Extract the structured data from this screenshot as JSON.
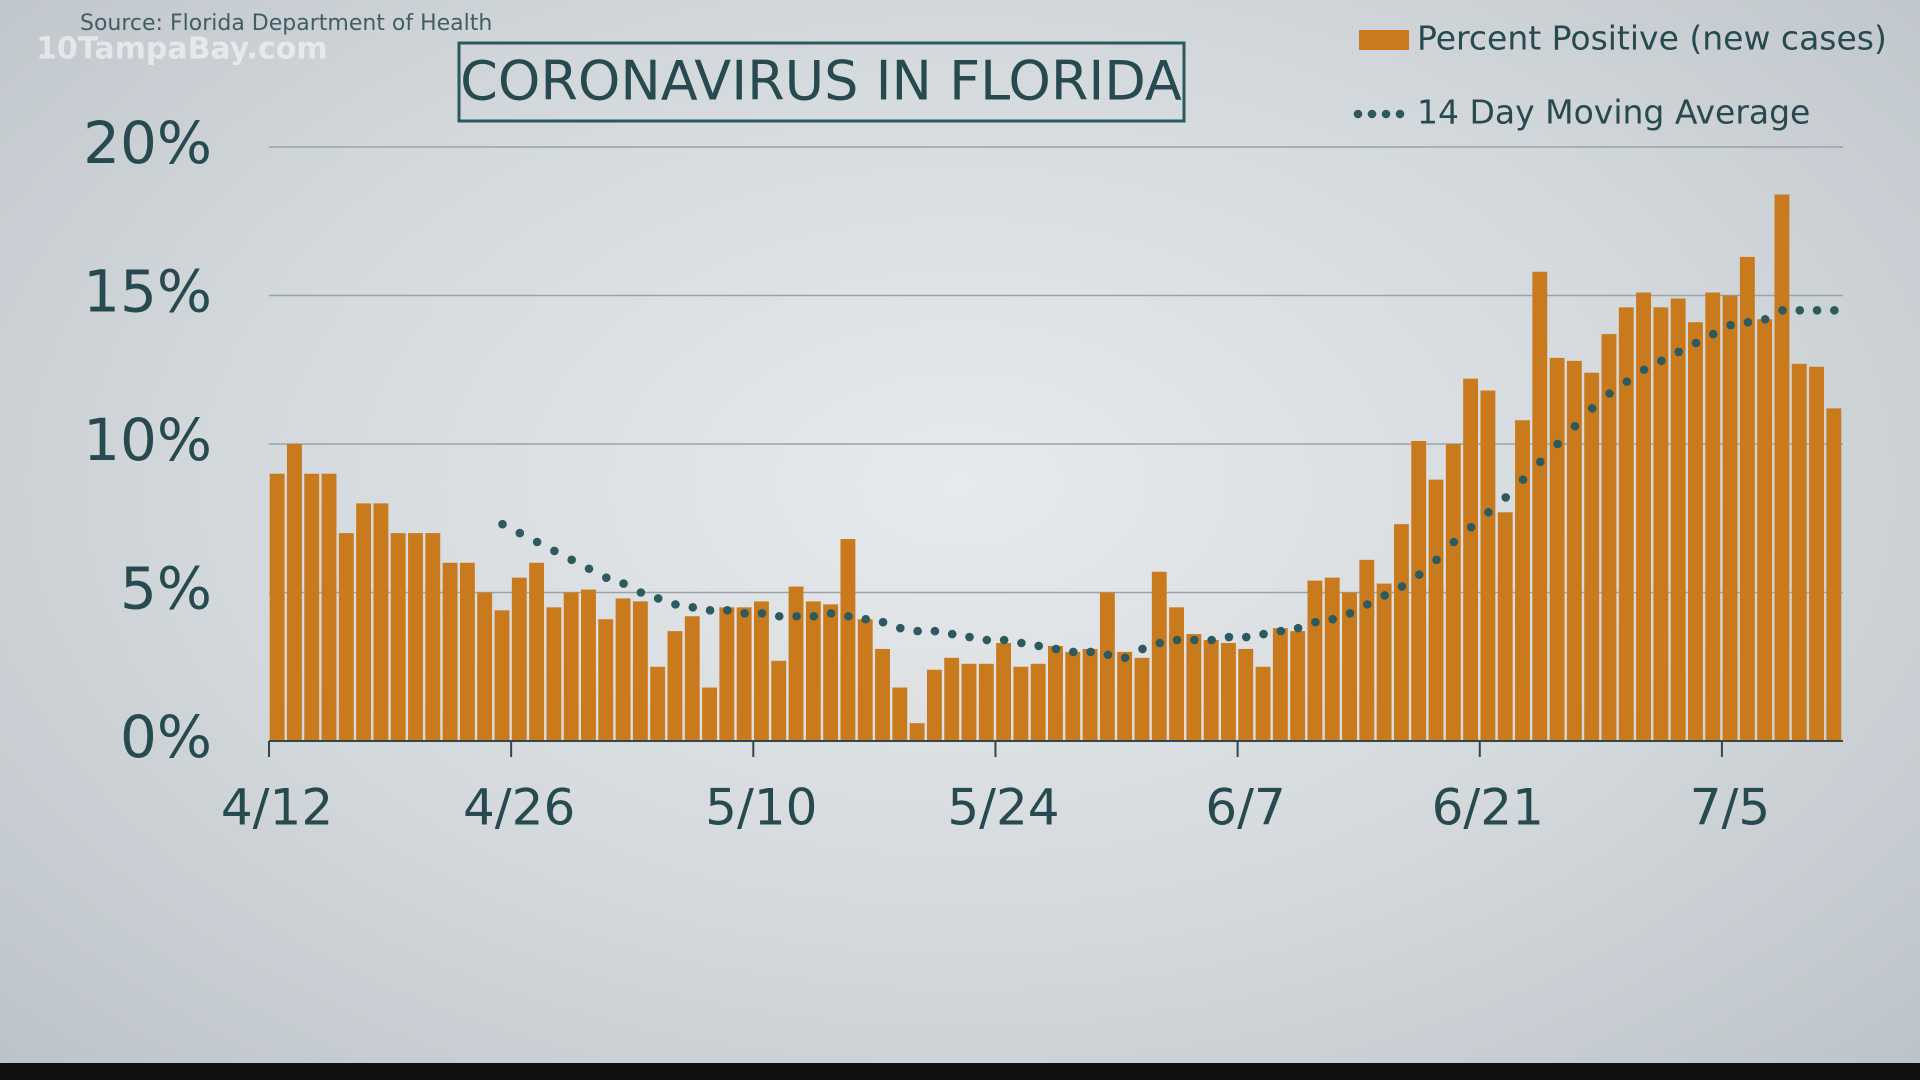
{
  "chart_data": {
    "type": "bar",
    "title": "CORONAVIRUS IN FLORIDA",
    "source": "Source: Florida Department of Health",
    "watermark": "10TampaBay.com",
    "categories": [
      "4/12",
      null,
      null,
      null,
      null,
      null,
      null,
      null,
      null,
      null,
      null,
      null,
      null,
      null,
      "4/26",
      null,
      null,
      null,
      null,
      null,
      null,
      null,
      null,
      null,
      null,
      null,
      null,
      null,
      "5/10",
      null,
      null,
      null,
      null,
      null,
      null,
      null,
      null,
      null,
      null,
      null,
      null,
      null,
      "5/24",
      null,
      null,
      null,
      null,
      null,
      null,
      null,
      null,
      null,
      null,
      null,
      null,
      null,
      "6/7",
      null,
      null,
      null,
      null,
      null,
      null,
      null,
      null,
      null,
      null,
      null,
      null,
      null,
      "6/21",
      null,
      null,
      null,
      null,
      null,
      null,
      null,
      null,
      null,
      null,
      null,
      null,
      null,
      "7/5",
      null,
      null,
      null,
      null,
      null,
      null
    ],
    "series": [
      {
        "name": "Percent Positive (new cases)",
        "type": "bar",
        "color": "#c97a1c",
        "values": [
          9.0,
          10.0,
          9.0,
          9.0,
          7.0,
          8.0,
          8.0,
          7.0,
          7.0,
          7.0,
          6.0,
          6.0,
          5.0,
          4.4,
          5.5,
          6.0,
          4.5,
          5.0,
          5.1,
          4.1,
          4.8,
          4.7,
          2.5,
          3.7,
          4.2,
          1.8,
          4.5,
          4.5,
          4.7,
          2.7,
          5.2,
          4.7,
          4.6,
          6.8,
          4.1,
          3.1,
          1.8,
          0.6,
          2.4,
          2.8,
          2.6,
          2.6,
          3.3,
          2.5,
          2.6,
          3.2,
          3.0,
          3.1,
          5.0,
          3.0,
          2.8,
          5.7,
          4.5,
          3.6,
          3.4,
          3.3,
          3.1,
          2.5,
          3.8,
          3.7,
          5.4,
          5.5,
          5.0,
          6.1,
          5.3,
          7.3,
          10.1,
          8.8,
          10.0,
          12.2,
          11.8,
          7.7,
          10.8,
          15.8,
          12.9,
          12.8,
          12.4,
          13.7,
          14.6,
          15.1,
          14.6,
          14.9,
          14.1,
          15.1,
          15.0,
          16.3,
          14.2,
          18.4,
          12.7,
          12.6,
          11.2
        ]
      },
      {
        "name": "14 Day Moving Average",
        "type": "dots",
        "color": "#2d5a5e",
        "values": [
          null,
          null,
          null,
          null,
          null,
          null,
          null,
          null,
          null,
          null,
          null,
          null,
          null,
          7.3,
          7.0,
          6.7,
          6.4,
          6.1,
          5.8,
          5.5,
          5.3,
          5.0,
          4.8,
          4.6,
          4.5,
          4.4,
          4.4,
          4.3,
          4.3,
          4.2,
          4.2,
          4.2,
          4.3,
          4.2,
          4.1,
          4.0,
          3.8,
          3.7,
          3.7,
          3.6,
          3.5,
          3.4,
          3.4,
          3.3,
          3.2,
          3.1,
          3.0,
          3.0,
          2.9,
          2.8,
          3.1,
          3.3,
          3.4,
          3.4,
          3.4,
          3.5,
          3.5,
          3.6,
          3.7,
          3.8,
          4.0,
          4.1,
          4.3,
          4.6,
          4.9,
          5.2,
          5.6,
          6.1,
          6.7,
          7.2,
          7.7,
          8.2,
          8.8,
          9.4,
          10.0,
          10.6,
          11.2,
          11.7,
          12.1,
          12.5,
          12.8,
          13.1,
          13.4,
          13.7,
          14.0,
          14.1,
          14.2,
          14.5,
          14.5,
          14.5,
          14.5
        ]
      }
    ],
    "ylim": [
      0,
      20
    ],
    "yticks": [
      {
        "value": 0,
        "label": "0%"
      },
      {
        "value": 5,
        "label": "5%"
      },
      {
        "value": 10,
        "label": "10%"
      },
      {
        "value": 15,
        "label": "15%"
      },
      {
        "value": 20,
        "label": "20%"
      }
    ],
    "grid": true
  }
}
